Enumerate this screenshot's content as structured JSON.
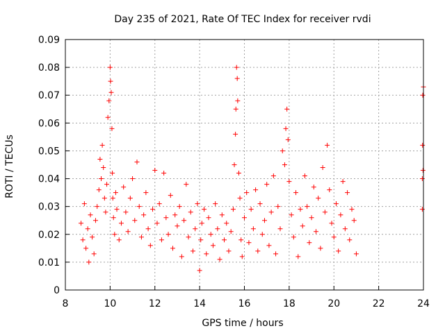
{
  "chart_data": {
    "type": "scatter",
    "title": "Day 235 of 2021, Rate Of TEC Index for receiver rvdi",
    "xlabel": "GPS time / hours",
    "ylabel": "ROTI / TECUs",
    "xlim": [
      8,
      24
    ],
    "ylim": [
      0,
      0.09
    ],
    "xticks": [
      "8",
      "10",
      "12",
      "14",
      "16",
      "18",
      "20",
      "22",
      "24"
    ],
    "yticks": [
      "0",
      "0.01",
      "0.02",
      "0.03",
      "0.04",
      "0.05",
      "0.06",
      "0.07",
      "0.08",
      "0.09"
    ],
    "grid": true,
    "marker": "+",
    "color": "#ff0000",
    "series": [
      {
        "x": [
          8.7,
          8.78,
          8.85,
          8.92,
          9.0,
          9.05,
          9.12,
          9.2,
          9.28,
          9.35,
          9.42,
          9.5,
          9.55,
          9.6,
          9.65,
          9.7,
          9.75,
          9.8,
          9.85,
          9.9,
          9.95,
          10.0,
          10.02,
          10.05,
          10.08,
          10.1,
          10.12,
          10.15,
          10.2,
          10.25,
          10.3,
          10.4,
          10.5,
          10.6,
          10.7,
          10.8,
          10.9,
          11.0,
          11.1,
          11.2,
          11.3,
          11.4,
          11.5,
          11.6,
          11.7,
          11.8,
          11.9,
          12.0,
          12.1,
          12.2,
          12.3,
          12.4,
          12.5,
          12.6,
          12.7,
          12.8,
          12.9,
          13.0,
          13.1,
          13.2,
          13.3,
          13.4,
          13.5,
          13.6,
          13.7,
          13.8,
          13.9,
          14.0,
          14.05,
          14.1,
          14.2,
          14.3,
          14.4,
          14.5,
          14.6,
          14.7,
          14.8,
          14.9,
          15.0,
          15.1,
          15.2,
          15.3,
          15.4,
          15.5,
          15.55,
          15.6,
          15.62,
          15.65,
          15.68,
          15.7,
          15.75,
          15.8,
          15.85,
          15.9,
          16.0,
          16.1,
          16.2,
          16.3,
          16.4,
          16.5,
          16.6,
          16.7,
          16.8,
          16.9,
          17.0,
          17.1,
          17.2,
          17.3,
          17.4,
          17.5,
          17.6,
          17.7,
          17.8,
          17.85,
          17.9,
          17.95,
          18.0,
          18.1,
          18.2,
          18.3,
          18.4,
          18.5,
          18.6,
          18.7,
          18.8,
          18.9,
          19.0,
          19.1,
          19.2,
          19.3,
          19.4,
          19.5,
          19.6,
          19.7,
          19.8,
          19.9,
          20.0,
          20.1,
          20.2,
          20.3,
          20.4,
          20.5,
          20.6,
          20.7,
          20.8,
          20.9,
          21.0,
          23.95,
          23.97,
          24.0,
          23.96,
          23.98,
          23.95
        ],
        "values": [
          0.024,
          0.018,
          0.031,
          0.015,
          0.022,
          0.01,
          0.027,
          0.019,
          0.013,
          0.025,
          0.03,
          0.036,
          0.047,
          0.04,
          0.052,
          0.044,
          0.033,
          0.028,
          0.038,
          0.062,
          0.068,
          0.08,
          0.075,
          0.071,
          0.058,
          0.042,
          0.033,
          0.026,
          0.02,
          0.035,
          0.029,
          0.018,
          0.024,
          0.037,
          0.028,
          0.021,
          0.033,
          0.04,
          0.025,
          0.046,
          0.03,
          0.019,
          0.027,
          0.035,
          0.022,
          0.016,
          0.029,
          0.043,
          0.024,
          0.031,
          0.018,
          0.042,
          0.026,
          0.02,
          0.034,
          0.015,
          0.027,
          0.023,
          0.03,
          0.012,
          0.025,
          0.038,
          0.019,
          0.028,
          0.014,
          0.022,
          0.031,
          0.007,
          0.018,
          0.024,
          0.029,
          0.013,
          0.026,
          0.02,
          0.016,
          0.031,
          0.022,
          0.011,
          0.027,
          0.018,
          0.024,
          0.014,
          0.021,
          0.029,
          0.045,
          0.056,
          0.065,
          0.08,
          0.076,
          0.068,
          0.042,
          0.033,
          0.018,
          0.012,
          0.026,
          0.035,
          0.017,
          0.029,
          0.022,
          0.036,
          0.014,
          0.031,
          0.02,
          0.025,
          0.038,
          0.016,
          0.028,
          0.041,
          0.013,
          0.03,
          0.022,
          0.05,
          0.045,
          0.058,
          0.065,
          0.054,
          0.039,
          0.027,
          0.019,
          0.035,
          0.012,
          0.029,
          0.023,
          0.041,
          0.03,
          0.017,
          0.026,
          0.037,
          0.021,
          0.033,
          0.015,
          0.044,
          0.028,
          0.052,
          0.036,
          0.024,
          0.019,
          0.031,
          0.014,
          0.027,
          0.039,
          0.022,
          0.035,
          0.018,
          0.029,
          0.025,
          0.013,
          0.029,
          0.07,
          0.073,
          0.052,
          0.043,
          0.04
        ]
      }
    ]
  }
}
